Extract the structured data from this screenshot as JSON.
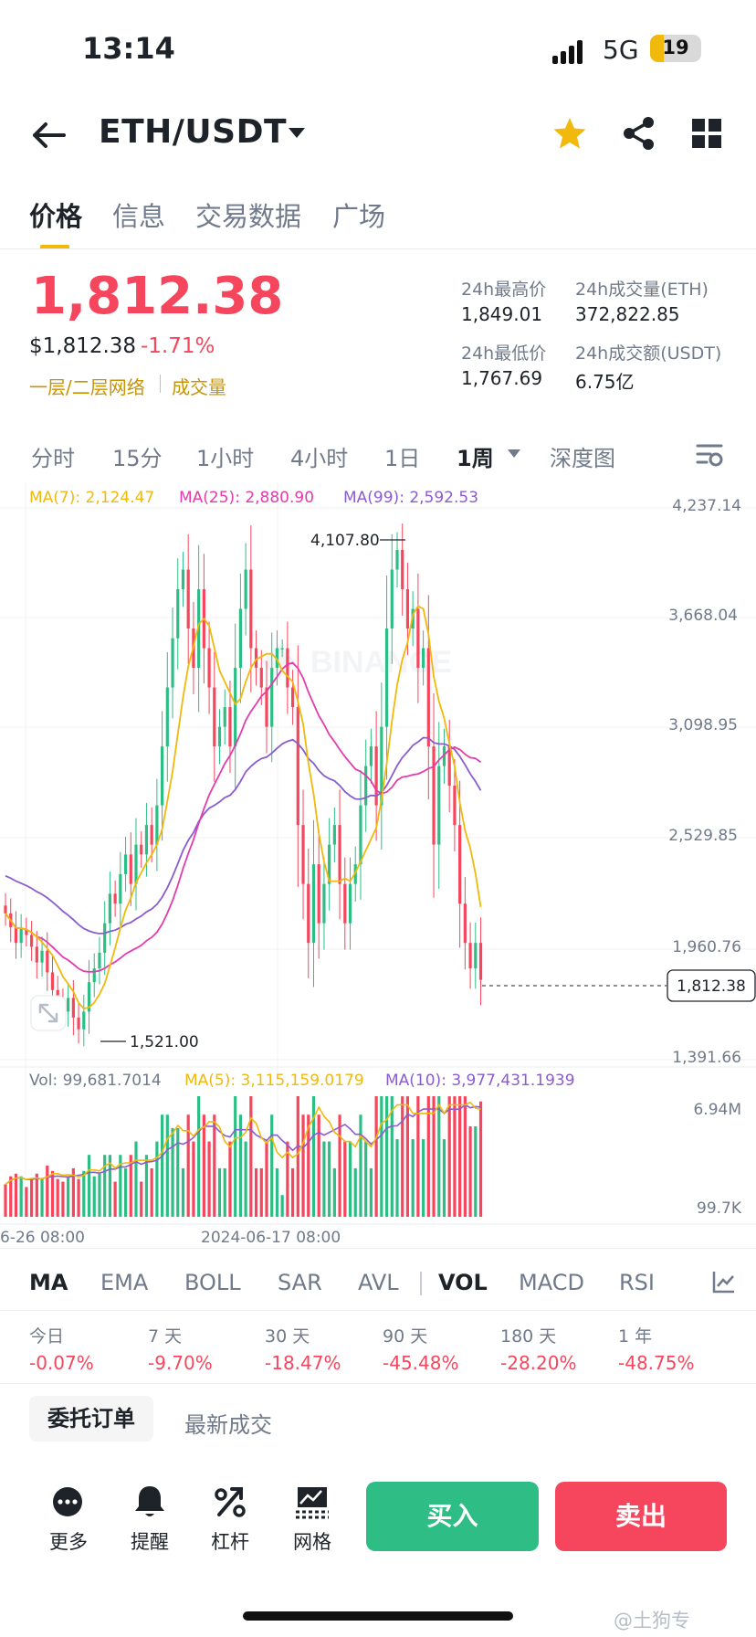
{
  "status_bar": {
    "time": "13:14",
    "network": "5G",
    "battery": "19",
    "battery_level": 0.19
  },
  "header": {
    "pair": "ETH/USDT"
  },
  "tabs": [
    "价格",
    "信息",
    "交易数据",
    "广场"
  ],
  "price": {
    "last": "1,812.38",
    "usd": "$1,812.38",
    "change": "-1.71%",
    "tag_network": "一层/二层网络",
    "tag_volume": "成交量"
  },
  "stats": {
    "high_label": "24h最高价",
    "high": "1,849.01",
    "vol_eth_label": "24h成交量(ETH)",
    "vol_eth": "372,822.85",
    "low_label": "24h最低价",
    "low": "1,767.69",
    "vol_usdt_label": "24h成交额(USDT)",
    "vol_usdt": "6.75亿"
  },
  "intervals": [
    "分时",
    "15分",
    "1小时",
    "4小时",
    "1日",
    "1周",
    "深度图"
  ],
  "chart_data": {
    "type": "candlestick",
    "price_axis": [
      "4,237.14",
      "3,668.04",
      "3,098.95",
      "2,529.85",
      "1,960.76",
      "1,391.66"
    ],
    "ma_legend": {
      "ma7": "MA(7): 2,124.47",
      "ma25": "MA(25): 2,880.90",
      "ma99": "MA(99): 2,592.53"
    },
    "max_label": "4,107.80",
    "min_label": "1,521.00",
    "current_price_label": "1,812.38",
    "vol_legend": {
      "vol": "Vol: 99,681.7014",
      "ma5": "MA(5): 3,115,159.0179",
      "ma10": "MA(10): 3,977,431.1939"
    },
    "vol_axis": [
      "6.94M",
      "99.7K"
    ],
    "x_labels": [
      "6-26 08:00",
      "2024-06-17 08:00"
    ],
    "close_approx": [
      2150,
      2080,
      2000,
      2070,
      2040,
      1980,
      1900,
      1960,
      1850,
      1760,
      1700,
      1650,
      1720,
      1620,
      1560,
      1650,
      1800,
      1870,
      1950,
      2100,
      2250,
      2200,
      2350,
      2450,
      2300,
      2500,
      2450,
      2600,
      2500,
      2700,
      3000,
      3300,
      3550,
      3800,
      3900,
      3600,
      3400,
      3800,
      3500,
      3300,
      3000,
      3100,
      3200,
      3000,
      3400,
      3700,
      3900,
      3500,
      3400,
      3300,
      3100,
      3400,
      3500,
      3500,
      3300,
      3200,
      2600,
      2300,
      2000,
      2400,
      2100,
      2300,
      2500,
      2600,
      2300,
      2100,
      2300,
      2400,
      2700,
      2900,
      3000,
      2700,
      3100,
      3600,
      3900,
      4000,
      3800,
      3600,
      3700,
      3400,
      3500,
      3000,
      2500,
      2900,
      3000,
      2800,
      2600,
      2200,
      2000,
      1870,
      2000,
      1812
    ]
  },
  "indicators": [
    "MA",
    "EMA",
    "BOLL",
    "SAR",
    "AVL",
    "VOL",
    "MACD",
    "RSI"
  ],
  "performance": [
    {
      "label": "今日",
      "value": "-0.07%"
    },
    {
      "label": "7 天",
      "value": "-9.70%"
    },
    {
      "label": "30 天",
      "value": "-18.47%"
    },
    {
      "label": "90 天",
      "value": "-45.48%"
    },
    {
      "label": "180 天",
      "value": "-28.20%"
    },
    {
      "label": "1 年",
      "value": "-48.75%"
    }
  ],
  "order_tabs": [
    "委托订单",
    "最新成交"
  ],
  "bottom": {
    "more": "更多",
    "alert": "提醒",
    "leverage": "杠杆",
    "grid": "网格",
    "buy": "买入",
    "sell": "卖出"
  },
  "watermark": "@土狗专",
  "colors": {
    "up": "#2ebd85",
    "down": "#f6465d",
    "accent": "#f0b90b",
    "ma7": "#f0b90b",
    "ma25": "#e33cab",
    "ma99": "#8a5cd0"
  }
}
